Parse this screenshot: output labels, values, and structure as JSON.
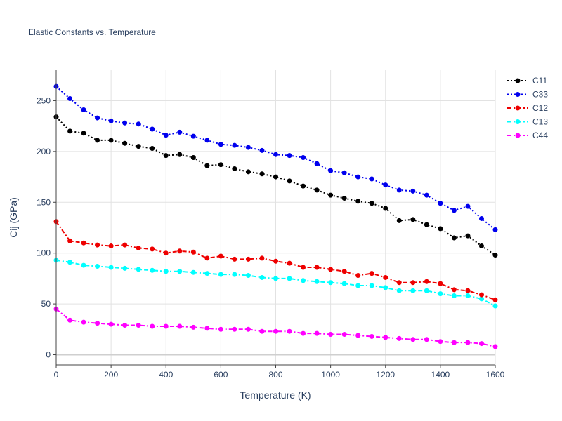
{
  "chart_data": {
    "type": "line",
    "title": "Elastic Constants vs. Temperature",
    "xlabel": "Temperature (K)",
    "ylabel": "Cij (GPa)",
    "xlim": [
      0,
      1600
    ],
    "ylim": [
      -10,
      280
    ],
    "xticks": [
      0,
      200,
      400,
      600,
      800,
      1000,
      1200,
      1400,
      1600
    ],
    "yticks": [
      0,
      50,
      100,
      150,
      200,
      250
    ],
    "grid": true,
    "legend_position": "top-right",
    "x": [
      0,
      50,
      100,
      150,
      200,
      250,
      300,
      350,
      400,
      450,
      500,
      550,
      600,
      650,
      700,
      750,
      800,
      850,
      900,
      950,
      1000,
      1050,
      1100,
      1150,
      1200,
      1250,
      1300,
      1350,
      1400,
      1450,
      1500,
      1550,
      1600
    ],
    "series": [
      {
        "name": "C11",
        "color": "#000000",
        "dash": "dot",
        "values": [
          234,
          220,
          218,
          211,
          211,
          208,
          205,
          203,
          196,
          197,
          194,
          186,
          187,
          183,
          180,
          178,
          175,
          171,
          166,
          162,
          157,
          154,
          151,
          149,
          144,
          132,
          133,
          128,
          124,
          115,
          117,
          107,
          98
        ]
      },
      {
        "name": "C33",
        "color": "#0000ee",
        "dash": "dot",
        "values": [
          264,
          252,
          241,
          233,
          230,
          228,
          227,
          222,
          216,
          219,
          215,
          211,
          207,
          206,
          204,
          201,
          197,
          196,
          194,
          188,
          181,
          179,
          175,
          173,
          167,
          162,
          161,
          157,
          149,
          142,
          146,
          134,
          123
        ]
      },
      {
        "name": "C12",
        "color": "#ee0000",
        "dash": "dashdot",
        "values": [
          131,
          112,
          110,
          108,
          107,
          108,
          105,
          104,
          100,
          102,
          101,
          95,
          97,
          94,
          94,
          95,
          92,
          90,
          86,
          86,
          84,
          82,
          78,
          80,
          76,
          71,
          71,
          72,
          70,
          64,
          63,
          59,
          54
        ]
      },
      {
        "name": "C13",
        "color": "#00ffff",
        "dash": "dashdot",
        "values": [
          93,
          91,
          88,
          87,
          86,
          85,
          84,
          83,
          82,
          82,
          81,
          80,
          79,
          79,
          78,
          76,
          75,
          75,
          73,
          72,
          71,
          70,
          68,
          68,
          66,
          63,
          63,
          63,
          60,
          58,
          58,
          55,
          48
        ]
      },
      {
        "name": "C44",
        "color": "#ff00ff",
        "dash": "dashdot",
        "values": [
          45,
          34,
          32,
          31,
          30,
          29,
          29,
          28,
          28,
          28,
          27,
          26,
          25,
          25,
          25,
          23,
          23,
          23,
          21,
          21,
          20,
          20,
          19,
          18,
          17,
          16,
          15,
          15,
          13,
          12,
          12,
          11,
          8
        ]
      }
    ]
  }
}
